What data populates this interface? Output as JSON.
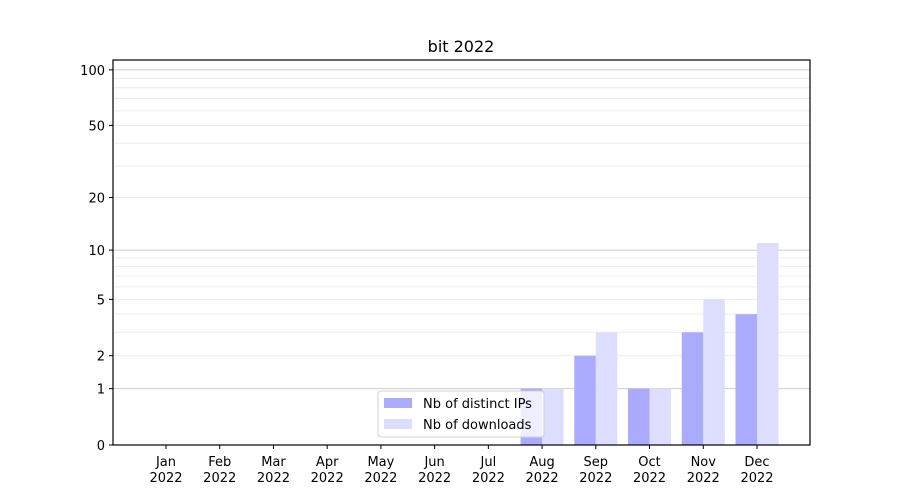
{
  "chart_data": {
    "type": "bar",
    "title": "bit 2022",
    "xlabel": "",
    "ylabel": "",
    "yscale": "log(1+y)",
    "ylim": [
      0,
      113
    ],
    "yticks": [
      0,
      1,
      2,
      5,
      10,
      20,
      50,
      100
    ],
    "grid": true,
    "legend_position": "lower-center",
    "categories": [
      "Jan\n2022",
      "Feb\n2022",
      "Mar\n2022",
      "Apr\n2022",
      "May\n2022",
      "Jun\n2022",
      "Jul\n2022",
      "Aug\n2022",
      "Sep\n2022",
      "Oct\n2022",
      "Nov\n2022",
      "Dec\n2022"
    ],
    "series": [
      {
        "name": "Nb of distinct IPs",
        "color": "#aaaaff",
        "values": [
          0,
          0,
          0,
          0,
          0,
          0,
          0,
          1,
          2,
          1,
          3,
          4
        ]
      },
      {
        "name": "Nb of downloads",
        "color": "#ddddff",
        "values": [
          0,
          0,
          0,
          0,
          0,
          0,
          0,
          1,
          3,
          1,
          5,
          11
        ]
      }
    ]
  }
}
